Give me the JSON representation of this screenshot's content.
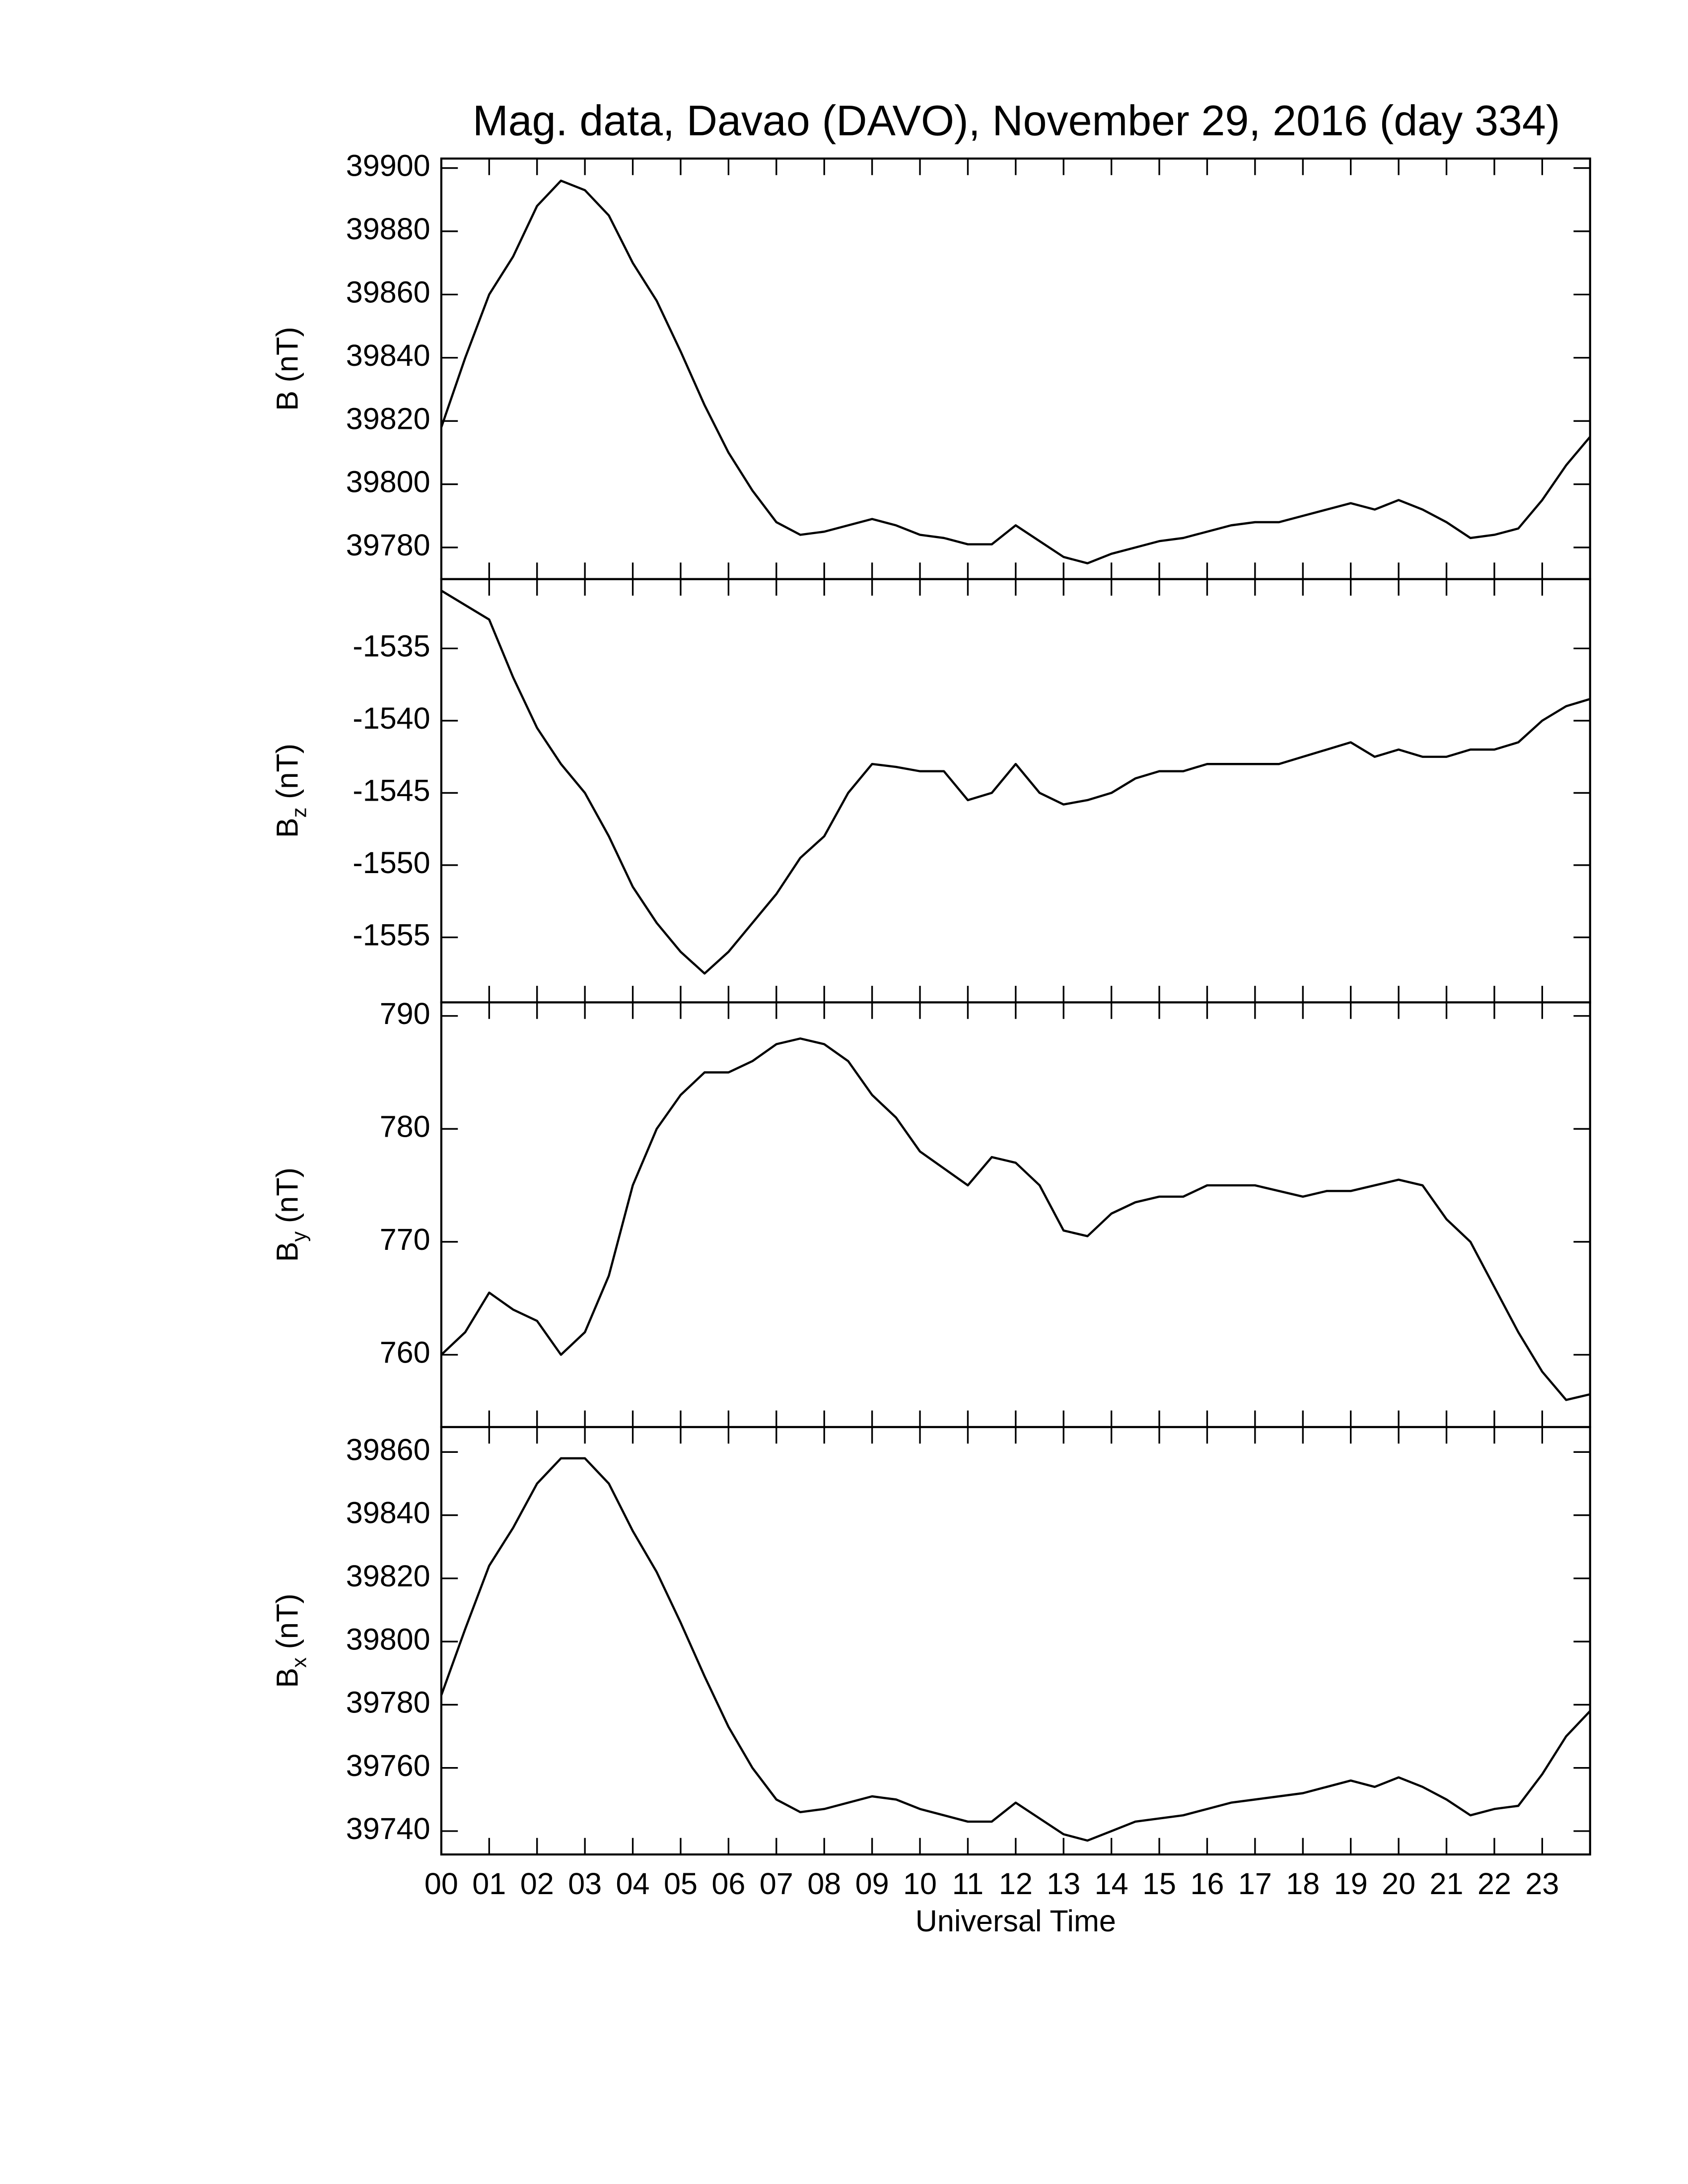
{
  "title": "Mag. data, Davao (DAVO), November 29, 2016 (day 334)",
  "chart_data": [
    {
      "type": "line",
      "ylabel": {
        "symbol": "B",
        "unit": "(nT)"
      },
      "color": "#000000",
      "xlim": [
        0,
        24
      ],
      "ylim": [
        39770,
        39903
      ],
      "yticks": [
        39780,
        39800,
        39820,
        39840,
        39860,
        39880,
        39900
      ],
      "x": [
        0,
        0.5,
        1,
        1.5,
        2,
        2.5,
        3,
        3.5,
        4,
        4.5,
        5,
        5.5,
        6,
        6.5,
        7,
        7.5,
        8,
        8.5,
        9,
        9.5,
        10,
        10.5,
        11,
        11.5,
        12,
        12.5,
        13,
        13.5,
        14,
        14.5,
        15,
        15.5,
        16,
        16.5,
        17,
        17.5,
        18,
        18.5,
        19,
        19.5,
        20,
        20.5,
        21,
        21.5,
        22,
        22.5,
        23,
        23.5,
        24
      ],
      "values": [
        39818,
        39840,
        39860,
        39872,
        39888,
        39896,
        39893,
        39885,
        39870,
        39858,
        39842,
        39825,
        39810,
        39798,
        39788,
        39784,
        39785,
        39787,
        39789,
        39787,
        39784,
        39783,
        39781,
        39781,
        39787,
        39782,
        39777,
        39775,
        39778,
        39780,
        39782,
        39783,
        39785,
        39787,
        39788,
        39788,
        39790,
        39792,
        39794,
        39792,
        39795,
        39792,
        39788,
        39783,
        39784,
        39786,
        39795,
        39806,
        39815
      ]
    },
    {
      "type": "line",
      "ylabel": {
        "symbol": "B",
        "subscript": "z",
        "unit": "(nT)"
      },
      "color": "#000000",
      "xlim": [
        0,
        24
      ],
      "ylim": [
        -1559.5,
        -1530.2
      ],
      "yticks": [
        -1555,
        -1550,
        -1545,
        -1540,
        -1535
      ],
      "x": [
        0,
        0.5,
        1,
        1.5,
        2,
        2.5,
        3,
        3.5,
        4,
        4.5,
        5,
        5.5,
        6,
        6.5,
        7,
        7.5,
        8,
        8.5,
        9,
        9.5,
        10,
        10.5,
        11,
        11.5,
        12,
        12.5,
        13,
        13.5,
        14,
        14.5,
        15,
        15.5,
        16,
        16.5,
        17,
        17.5,
        18,
        18.5,
        19,
        19.5,
        20,
        20.5,
        21,
        21.5,
        22,
        22.5,
        23,
        23.5,
        24
      ],
      "values": [
        -1531,
        -1532,
        -1533,
        -1537,
        -1540.5,
        -1543,
        -1545,
        -1548,
        -1551.5,
        -1554,
        -1556,
        -1557.5,
        -1556,
        -1554,
        -1552,
        -1549.5,
        -1548,
        -1545,
        -1543,
        -1543.2,
        -1543.5,
        -1543.5,
        -1545.5,
        -1545,
        -1543,
        -1545,
        -1545.8,
        -1545.5,
        -1545,
        -1544,
        -1543.5,
        -1543.5,
        -1543,
        -1543,
        -1543,
        -1543,
        -1542.5,
        -1542,
        -1541.5,
        -1542.5,
        -1542,
        -1542.5,
        -1542.5,
        -1542,
        -1542,
        -1541.5,
        -1540,
        -1539,
        -1538.5
      ]
    },
    {
      "type": "line",
      "ylabel": {
        "symbol": "B",
        "subscript": "y",
        "unit": "(nT)"
      },
      "color": "#000000",
      "xlim": [
        0,
        24
      ],
      "ylim": [
        753.6,
        791.2
      ],
      "yticks": [
        760,
        770,
        780,
        790
      ],
      "x": [
        0,
        0.5,
        1,
        1.5,
        2,
        2.5,
        3,
        3.5,
        4,
        4.5,
        5,
        5.5,
        6,
        6.5,
        7,
        7.5,
        8,
        8.5,
        9,
        9.5,
        10,
        10.5,
        11,
        11.5,
        12,
        12.5,
        13,
        13.5,
        14,
        14.5,
        15,
        15.5,
        16,
        16.5,
        17,
        17.5,
        18,
        18.5,
        19,
        19.5,
        20,
        20.5,
        21,
        21.5,
        22,
        22.5,
        23,
        23.5,
        24
      ],
      "values": [
        760,
        762,
        765.5,
        764,
        763,
        760,
        762,
        767,
        775,
        780,
        783,
        785,
        785,
        786,
        787.5,
        788,
        787.5,
        786,
        783,
        781,
        778,
        776.5,
        775,
        777.5,
        777,
        775,
        771,
        770.5,
        772.5,
        773.5,
        774,
        774,
        775,
        775,
        775,
        774.5,
        774,
        774.5,
        774.5,
        775,
        775.5,
        775,
        772,
        770,
        766,
        762,
        758.5,
        756,
        756.5
      ]
    },
    {
      "type": "line",
      "ylabel": {
        "symbol": "B",
        "subscript": "x",
        "unit": "(nT)"
      },
      "color": "#000000",
      "xlabel": "Universal Time",
      "xlim": [
        0,
        24
      ],
      "ylim": [
        39732.6,
        39867.9
      ],
      "yticks": [
        39740,
        39760,
        39780,
        39800,
        39820,
        39840,
        39860
      ],
      "xticks": [
        {
          "value": 0,
          "label": "00"
        },
        {
          "value": 1,
          "label": "01"
        },
        {
          "value": 2,
          "label": "02"
        },
        {
          "value": 3,
          "label": "03"
        },
        {
          "value": 4,
          "label": "04"
        },
        {
          "value": 5,
          "label": "05"
        },
        {
          "value": 6,
          "label": "06"
        },
        {
          "value": 7,
          "label": "07"
        },
        {
          "value": 8,
          "label": "08"
        },
        {
          "value": 9,
          "label": "09"
        },
        10,
        11,
        12,
        13,
        14,
        15,
        16,
        17,
        18,
        19,
        20,
        21,
        22,
        23
      ],
      "x": [
        0,
        0.5,
        1,
        1.5,
        2,
        2.5,
        3,
        3.5,
        4,
        4.5,
        5,
        5.5,
        6,
        6.5,
        7,
        7.5,
        8,
        8.5,
        9,
        9.5,
        10,
        10.5,
        11,
        11.5,
        12,
        12.5,
        13,
        13.5,
        14,
        14.5,
        15,
        15.5,
        16,
        16.5,
        17,
        17.5,
        18,
        18.5,
        19,
        19.5,
        20,
        20.5,
        21,
        21.5,
        22,
        22.5,
        23,
        23.5,
        24
      ],
      "values": [
        39783,
        39804,
        39824,
        39836,
        39850,
        39858,
        39858,
        39850,
        39835,
        39822,
        39806,
        39789,
        39773,
        39760,
        39750,
        39746,
        39747,
        39749,
        39751,
        39750,
        39747,
        39745,
        39743,
        39743,
        39749,
        39744,
        39739,
        39737,
        39740,
        39743,
        39744,
        39745,
        39747,
        39749,
        39750,
        39751,
        39752,
        39754,
        39756,
        39754,
        39757,
        39754,
        39750,
        39745,
        39747,
        39748,
        39758,
        39770,
        39778
      ]
    }
  ]
}
